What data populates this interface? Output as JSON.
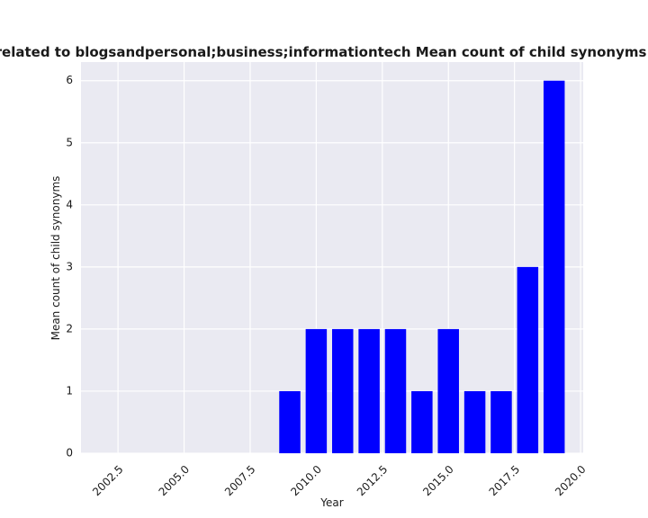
{
  "chart_data": {
    "type": "bar",
    "title": "Sites which are related to blogsandpersonal;business;informationtech Mean count of child synonyms in privacy policies",
    "xlabel": "Year",
    "ylabel": "Mean count of child synonyms",
    "x": [
      2009,
      2010,
      2011,
      2012,
      2013,
      2014,
      2015,
      2016,
      2017,
      2018,
      2019
    ],
    "values": [
      1,
      2,
      2,
      2,
      2,
      1,
      2,
      1,
      1,
      3,
      6
    ],
    "xlim": [
      2001.1,
      2020.1
    ],
    "ylim": [
      0,
      6.3
    ],
    "xticks": [
      "2002.5",
      "2005.0",
      "2007.5",
      "2010.0",
      "2012.5",
      "2015.0",
      "2017.5",
      "2020.0"
    ],
    "yticks": [
      "0",
      "1",
      "2",
      "3",
      "4",
      "5",
      "6"
    ],
    "grid": true,
    "colors": {
      "bar": "#0000ff",
      "plot_background": "#eaeaf2",
      "grid": "#ffffff"
    }
  }
}
